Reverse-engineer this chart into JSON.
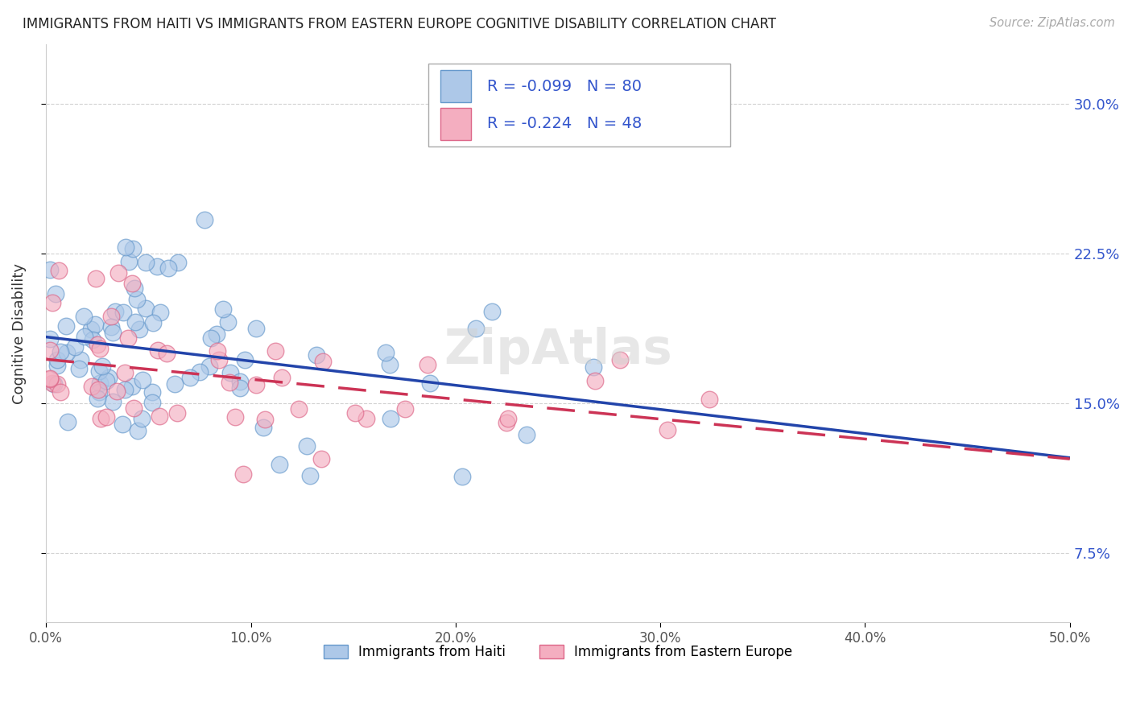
{
  "title": "IMMIGRANTS FROM HAITI VS IMMIGRANTS FROM EASTERN EUROPE COGNITIVE DISABILITY CORRELATION CHART",
  "source": "Source: ZipAtlas.com",
  "ylabel": "Cognitive Disability",
  "xlim": [
    0.0,
    0.5
  ],
  "ylim": [
    0.04,
    0.33
  ],
  "yticks": [
    0.075,
    0.15,
    0.225,
    0.3
  ],
  "ytick_labels": [
    "7.5%",
    "15.0%",
    "22.5%",
    "30.0%"
  ],
  "xticks": [
    0.0,
    0.1,
    0.2,
    0.3,
    0.4,
    0.5
  ],
  "xtick_labels": [
    "0.0%",
    "10.0%",
    "20.0%",
    "30.0%",
    "40.0%",
    "50.0%"
  ],
  "series1_label": "Immigrants from Haiti",
  "series2_label": "Immigrants from Eastern Europe",
  "series1_R": "-0.099",
  "series1_N": "80",
  "series2_R": "-0.224",
  "series2_N": "48",
  "series1_color": "#adc8e8",
  "series2_color": "#f4aec0",
  "series1_edge": "#6699cc",
  "series2_edge": "#dd6688",
  "trendline1_color": "#2244aa",
  "trendline2_color": "#cc3355",
  "background_color": "#ffffff",
  "grid_color": "#cccccc",
  "legend_text_color": "#3355cc",
  "title_color": "#222222",
  "source_color": "#aaaaaa"
}
